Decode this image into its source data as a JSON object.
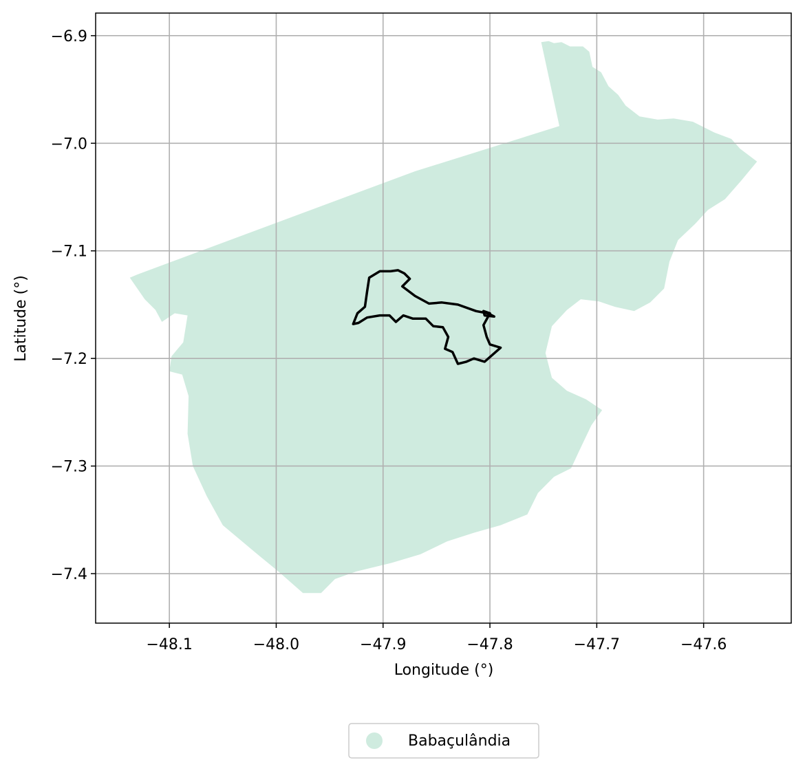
{
  "chart_data": {
    "type": "map",
    "xlabel": "Longitude (°)",
    "ylabel": "Latitude (°)",
    "xlim": [
      -48.169,
      -47.518
    ],
    "ylim": [
      -7.446,
      -6.879
    ],
    "x_ticks": [
      -48.1,
      -48.0,
      -47.9,
      -47.8,
      -47.7,
      -47.6
    ],
    "x_tick_labels": [
      "−48.1",
      "−48.0",
      "−47.9",
      "−47.8",
      "−47.7",
      "−47.6"
    ],
    "y_ticks": [
      -6.9,
      -7.0,
      -7.1,
      -7.2,
      -7.3,
      -7.4
    ],
    "y_tick_labels": [
      "−6.9",
      "−7.0",
      "−7.1",
      "−7.2",
      "−7.3",
      "−7.4"
    ],
    "grid": true,
    "legend": {
      "placement": "bottom-center",
      "entries": [
        "Babaçulândia"
      ]
    },
    "colors": {
      "region_fill": "#cfebdf",
      "outline": "#000000",
      "grid": "#b0b0b0"
    },
    "layers": [
      {
        "name": "Babaçulândia",
        "kind": "filled-polygon",
        "coordinates": [
          [
            -47.752,
            -6.906
          ],
          [
            -47.745,
            -6.905
          ],
          [
            -47.74,
            -6.907
          ],
          [
            -47.733,
            -6.906
          ],
          [
            -47.725,
            -6.91
          ],
          [
            -47.713,
            -6.91
          ],
          [
            -47.707,
            -6.915
          ],
          [
            -47.704,
            -6.929
          ],
          [
            -47.696,
            -6.934
          ],
          [
            -47.689,
            -6.947
          ],
          [
            -47.68,
            -6.955
          ],
          [
            -47.673,
            -6.965
          ],
          [
            -47.66,
            -6.975
          ],
          [
            -47.643,
            -6.978
          ],
          [
            -47.628,
            -6.977
          ],
          [
            -47.61,
            -6.98
          ],
          [
            -47.59,
            -6.99
          ],
          [
            -47.574,
            -6.996
          ],
          [
            -47.566,
            -7.005
          ],
          [
            -47.55,
            -7.017
          ],
          [
            -47.565,
            -7.035
          ],
          [
            -47.58,
            -7.052
          ],
          [
            -47.596,
            -7.062
          ],
          [
            -47.608,
            -7.075
          ],
          [
            -47.624,
            -7.09
          ],
          [
            -47.632,
            -7.11
          ],
          [
            -47.637,
            -7.135
          ],
          [
            -47.65,
            -7.148
          ],
          [
            -47.665,
            -7.156
          ],
          [
            -47.683,
            -7.152
          ],
          [
            -47.698,
            -7.147
          ],
          [
            -47.715,
            -7.145
          ],
          [
            -47.728,
            -7.155
          ],
          [
            -47.742,
            -7.17
          ],
          [
            -47.748,
            -7.195
          ],
          [
            -47.742,
            -7.218
          ],
          [
            -47.728,
            -7.23
          ],
          [
            -47.71,
            -7.238
          ],
          [
            -47.695,
            -7.248
          ],
          [
            -47.705,
            -7.262
          ],
          [
            -47.716,
            -7.285
          ],
          [
            -47.724,
            -7.302
          ],
          [
            -47.74,
            -7.31
          ],
          [
            -47.755,
            -7.325
          ],
          [
            -47.765,
            -7.345
          ],
          [
            -47.79,
            -7.355
          ],
          [
            -47.815,
            -7.362
          ],
          [
            -47.84,
            -7.37
          ],
          [
            -47.865,
            -7.382
          ],
          [
            -47.892,
            -7.39
          ],
          [
            -47.925,
            -7.398
          ],
          [
            -47.945,
            -7.405
          ],
          [
            -47.958,
            -7.418
          ],
          [
            -47.975,
            -7.418
          ],
          [
            -47.998,
            -7.398
          ],
          [
            -48.02,
            -7.38
          ],
          [
            -48.05,
            -7.355
          ],
          [
            -48.065,
            -7.328
          ],
          [
            -48.078,
            -7.3
          ],
          [
            -48.083,
            -7.27
          ],
          [
            -48.082,
            -7.235
          ],
          [
            -48.088,
            -7.215
          ],
          [
            -48.1,
            -7.212
          ],
          [
            -48.098,
            -7.198
          ],
          [
            -48.087,
            -7.185
          ],
          [
            -48.083,
            -7.16
          ],
          [
            -48.095,
            -7.158
          ],
          [
            -48.107,
            -7.166
          ],
          [
            -48.113,
            -7.155
          ],
          [
            -48.123,
            -7.145
          ],
          [
            -48.137,
            -7.125
          ],
          [
            -48.13,
            -7.122
          ],
          [
            -47.87,
            -7.026
          ],
          [
            -47.735,
            -6.984
          ]
        ]
      },
      {
        "name": "urban area outline",
        "kind": "outline",
        "coordinates": [
          [
            -47.882,
            -7.133
          ],
          [
            -47.875,
            -7.126
          ],
          [
            -47.88,
            -7.121
          ],
          [
            -47.886,
            -7.118
          ],
          [
            -47.893,
            -7.119
          ],
          [
            -47.903,
            -7.119
          ],
          [
            -47.913,
            -7.125
          ],
          [
            -47.915,
            -7.138
          ],
          [
            -47.917,
            -7.152
          ],
          [
            -47.924,
            -7.158
          ],
          [
            -47.928,
            -7.168
          ],
          [
            -47.923,
            -7.167
          ],
          [
            -47.915,
            -7.162
          ],
          [
            -47.903,
            -7.16
          ],
          [
            -47.894,
            -7.16
          ],
          [
            -47.888,
            -7.166
          ],
          [
            -47.881,
            -7.16
          ],
          [
            -47.872,
            -7.163
          ],
          [
            -47.86,
            -7.163
          ],
          [
            -47.853,
            -7.17
          ],
          [
            -47.844,
            -7.171
          ],
          [
            -47.839,
            -7.18
          ],
          [
            -47.842,
            -7.191
          ],
          [
            -47.835,
            -7.194
          ],
          [
            -47.83,
            -7.205
          ],
          [
            -47.822,
            -7.203
          ],
          [
            -47.815,
            -7.2
          ],
          [
            -47.805,
            -7.203
          ],
          [
            -47.79,
            -7.19
          ],
          [
            -47.8,
            -7.187
          ],
          [
            -47.803,
            -7.18
          ],
          [
            -47.806,
            -7.169
          ],
          [
            -47.8,
            -7.158
          ],
          [
            -47.806,
            -7.156
          ],
          [
            -47.805,
            -7.16
          ],
          [
            -47.796,
            -7.161
          ],
          [
            -47.802,
            -7.158
          ],
          [
            -47.813,
            -7.156
          ],
          [
            -47.83,
            -7.15
          ],
          [
            -47.845,
            -7.148
          ],
          [
            -47.857,
            -7.149
          ],
          [
            -47.87,
            -7.142
          ]
        ]
      }
    ]
  }
}
